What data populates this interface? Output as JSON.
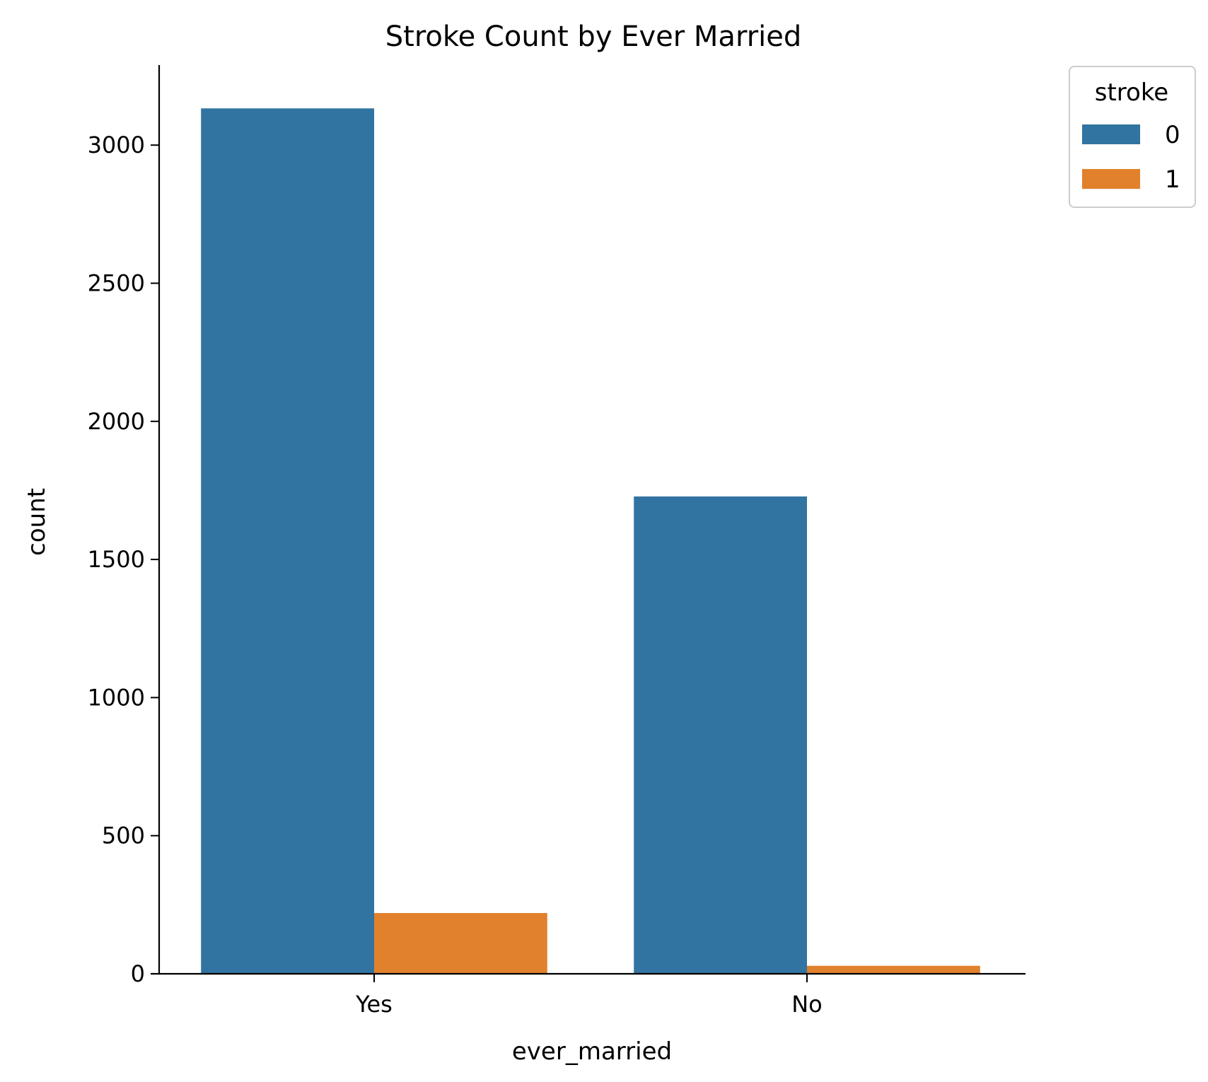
{
  "chart_data": {
    "type": "bar",
    "title": "Stroke Count by Ever Married",
    "xlabel": "ever_married",
    "ylabel": "count",
    "categories": [
      "Yes",
      "No"
    ],
    "series": [
      {
        "name": "0",
        "values": [
          3133,
          1728
        ],
        "color": "#3274a1"
      },
      {
        "name": "1",
        "values": [
          220,
          29
        ],
        "color": "#e1812c"
      }
    ],
    "ylim": [
      0,
      3300
    ],
    "yticks": [
      0,
      500,
      1000,
      1500,
      2000,
      2500,
      3000
    ],
    "grid": false,
    "legend": {
      "title": "stroke",
      "placement": "top-right outside"
    }
  }
}
